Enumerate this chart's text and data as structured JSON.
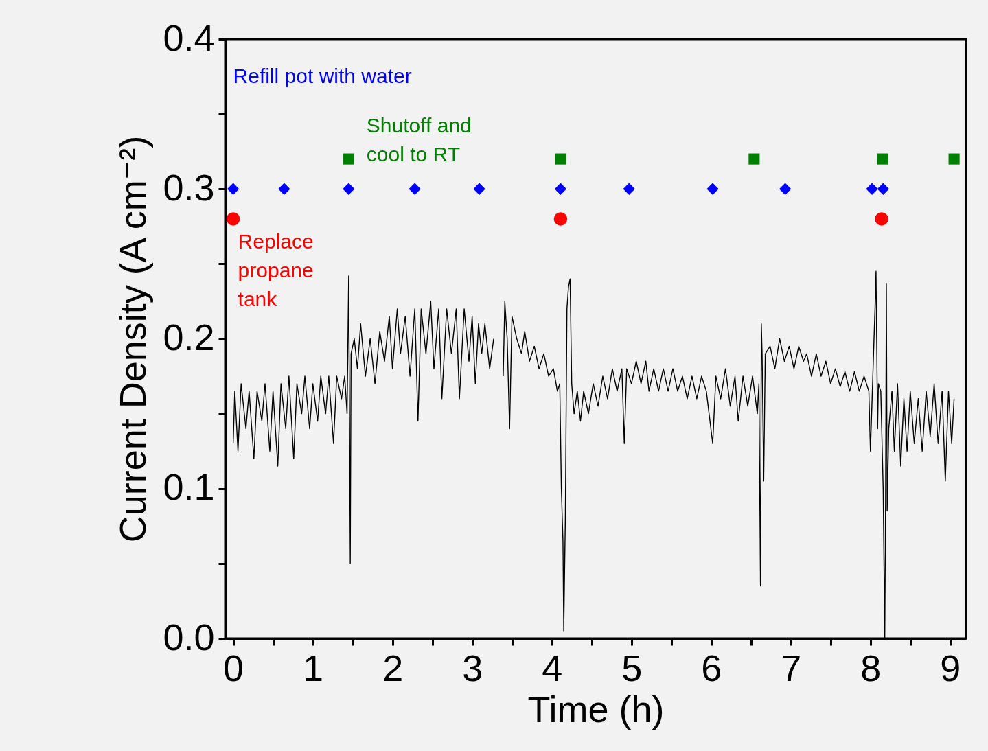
{
  "chart_data": {
    "type": "line",
    "xlabel": "Time (h)",
    "ylabel": "Current Density (A cm⁻²)",
    "xlim": [
      -0.1,
      9.2
    ],
    "ylim": [
      0,
      0.4
    ],
    "xticks": [
      0,
      {
        "value": 0.5,
        "label": null
      },
      1,
      {
        "value": 1.5,
        "label": null
      },
      2,
      {
        "value": 2.5,
        "label": null
      },
      3,
      {
        "value": 3.5,
        "label": null
      },
      4,
      {
        "value": 4.5,
        "label": null
      },
      5,
      {
        "value": 5.5,
        "label": null
      },
      6,
      {
        "value": 6.5,
        "label": null
      },
      7,
      {
        "value": 7.5,
        "label": null
      },
      8,
      {
        "value": 8.5,
        "label": null
      },
      9
    ],
    "yticks": [
      {
        "value": 0,
        "label": "0.0"
      },
      {
        "value": 0.05,
        "label": null
      },
      0.1,
      {
        "value": 0.15,
        "label": null
      },
      0.2,
      {
        "value": 0.25,
        "label": null
      },
      0.3,
      {
        "value": 0.35,
        "label": null
      },
      0.4
    ],
    "grid": false,
    "series": [
      {
        "color": "#000000",
        "marker": "none",
        "x": [
          0,
          0.02,
          0.06,
          0.1,
          0.16,
          0.2,
          0.26,
          0.3,
          0.36,
          0.4,
          0.46,
          0.5,
          0.56,
          0.6,
          0.66,
          0.7,
          0.76,
          0.8,
          0.86,
          0.9,
          0.96,
          1.0,
          1.06,
          1.1,
          1.16,
          1.2,
          1.26,
          1.3,
          1.36,
          1.4,
          1.43,
          1.45,
          1.46,
          1.47,
          1.48,
          1.52,
          1.56,
          1.6,
          1.66,
          1.72,
          1.78,
          1.84,
          1.9,
          1.96,
          2.0,
          2.06,
          2.1,
          2.16,
          2.22,
          2.28,
          2.32,
          2.36,
          2.42,
          2.48,
          2.52,
          2.58,
          2.62,
          2.68,
          2.74,
          2.8,
          2.84,
          2.9,
          2.96,
          3.0,
          3.04,
          3.08,
          3.12,
          3.16,
          3.22,
          3.27,
          3.33,
          3.39,
          3.41,
          3.44,
          3.47,
          3.5,
          3.56,
          3.62,
          3.66,
          3.72,
          3.78,
          3.84,
          3.9,
          3.96,
          4.02,
          4.07,
          4.1,
          4.12,
          4.14,
          4.15,
          4.17,
          4.19,
          4.21,
          4.23,
          4.25,
          4.28,
          4.32,
          4.36,
          4.4,
          4.46,
          4.52,
          4.58,
          4.64,
          4.7,
          4.76,
          4.82,
          4.88,
          4.91,
          4.94,
          5.0,
          5.06,
          5.12,
          5.18,
          5.22,
          5.28,
          5.34,
          5.4,
          5.46,
          5.52,
          5.58,
          5.64,
          5.7,
          5.76,
          5.82,
          5.88,
          5.94,
          6.02,
          6.06,
          6.12,
          6.18,
          6.24,
          6.3,
          6.34,
          6.4,
          6.46,
          6.52,
          6.58,
          6.6,
          6.62,
          6.63,
          6.64,
          6.66,
          6.68,
          6.74,
          6.8,
          6.86,
          6.92,
          6.98,
          7.04,
          7.1,
          7.16,
          7.2,
          7.26,
          7.32,
          7.38,
          7.44,
          7.5,
          7.56,
          7.62,
          7.68,
          7.74,
          7.8,
          7.86,
          7.92,
          7.98,
          8.0,
          8.03,
          8.06,
          8.07,
          8.09,
          8.1,
          8.13,
          8.16,
          8.18,
          8.19,
          8.2,
          8.21,
          8.23,
          8.27,
          8.3,
          8.34,
          8.38,
          8.42,
          8.46,
          8.5,
          8.55,
          8.6,
          8.65,
          8.7,
          8.75,
          8.8,
          8.85,
          8.9,
          8.94,
          8.98,
          9.02,
          9.05
        ],
        "values": [
          0.13,
          0.165,
          0.125,
          0.17,
          0.14,
          0.165,
          0.12,
          0.165,
          0.145,
          0.17,
          0.125,
          0.165,
          0.115,
          0.17,
          0.14,
          0.175,
          0.12,
          0.17,
          0.15,
          0.175,
          0.14,
          0.17,
          0.145,
          0.175,
          0.15,
          0.175,
          0.13,
          0.175,
          0.16,
          0.175,
          0.15,
          0.242,
          0.15,
          0.05,
          0.19,
          0.2,
          0.18,
          0.21,
          0.175,
          0.2,
          0.17,
          0.205,
          0.185,
          0.215,
          0.18,
          0.22,
          0.19,
          0.215,
          0.175,
          0.22,
          0.145,
          0.22,
          0.19,
          0.225,
          0.18,
          0.22,
          0.16,
          0.22,
          0.19,
          0.22,
          0.16,
          0.22,
          0.185,
          0.215,
          0.17,
          0.21,
          0.19,
          0.21,
          0.18,
          0.2,
          null,
          0.175,
          0.225,
          0.2,
          0.14,
          0.215,
          0.2,
          0.19,
          0.205,
          0.185,
          0.195,
          0.18,
          0.19,
          0.175,
          0.18,
          0.165,
          0.17,
          0.1,
          0.065,
          0.005,
          0.08,
          0.22,
          0.235,
          0.24,
          0.17,
          0.15,
          0.165,
          0.145,
          0.165,
          0.15,
          0.17,
          0.155,
          0.175,
          0.16,
          0.18,
          0.165,
          0.18,
          0.13,
          0.18,
          0.17,
          0.185,
          0.17,
          0.185,
          0.165,
          0.18,
          0.165,
          0.18,
          0.165,
          0.18,
          0.165,
          0.175,
          0.16,
          0.175,
          0.16,
          0.175,
          0.165,
          0.13,
          0.175,
          0.16,
          0.18,
          0.155,
          0.175,
          0.145,
          0.175,
          0.155,
          0.175,
          0.15,
          0.17,
          0.035,
          0.21,
          0.19,
          0.105,
          0.19,
          0.195,
          0.18,
          0.2,
          0.185,
          0.195,
          0.18,
          0.195,
          0.185,
          0.19,
          0.175,
          0.19,
          0.175,
          0.185,
          0.17,
          0.18,
          0.168,
          0.178,
          0.165,
          0.178,
          0.165,
          0.175,
          0.165,
          0.125,
          0.175,
          0.225,
          0.245,
          0.14,
          0.17,
          0.165,
          0.1,
          0.0,
          0.09,
          0.237,
          0.085,
          0.14,
          0.165,
          0.125,
          0.17,
          0.115,
          0.16,
          0.125,
          0.165,
          0.13,
          0.16,
          0.125,
          0.165,
          0.135,
          0.17,
          0.13,
          0.165,
          0.105,
          0.165,
          0.13,
          0.16
        ]
      },
      {
        "type": "scatter",
        "name": "Refill pot with water",
        "color": "#0000ff",
        "marker": "diamond",
        "x": [
          0,
          0.64,
          1.45,
          2.28,
          3.09,
          4.11,
          4.97,
          6.02,
          6.93,
          8.02,
          8.16
        ],
        "values": [
          0.3,
          0.3,
          0.3,
          0.3,
          0.3,
          0.3,
          0.3,
          0.3,
          0.3,
          0.3,
          0.3
        ]
      },
      {
        "type": "scatter",
        "name": "Shutoff and cool to RT",
        "color": "#008000",
        "marker": "square",
        "x": [
          1.45,
          4.11,
          6.54,
          8.15,
          9.05
        ],
        "values": [
          0.32,
          0.32,
          0.32,
          0.32,
          0.32
        ]
      },
      {
        "type": "scatter",
        "name": "Replace propane tank",
        "color": "#ff0000",
        "marker": "circle",
        "x": [
          0,
          4.11,
          8.14
        ],
        "values": [
          0.28,
          0.28,
          0.28
        ]
      }
    ]
  }
}
